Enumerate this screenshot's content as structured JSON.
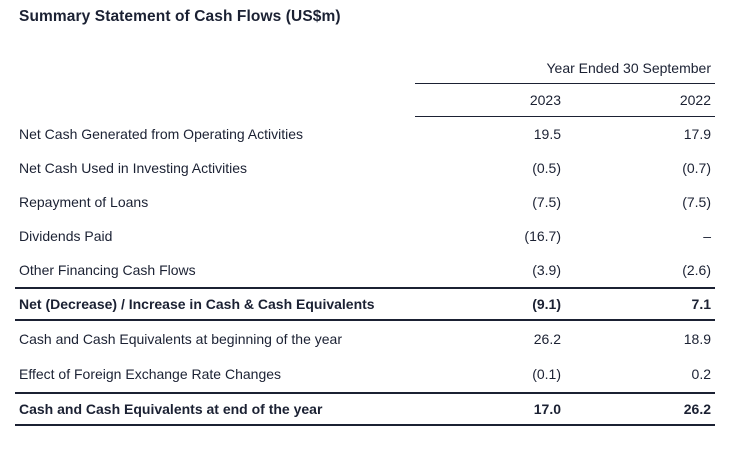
{
  "title": "Summary Statement of Cash Flows (US$m)",
  "colors": {
    "text": "#1b2133",
    "rule": "#1b2133",
    "background": "#ffffff"
  },
  "table": {
    "period_header": "Year Ended 30 September",
    "columns": [
      "2023",
      "2022"
    ],
    "rows": [
      {
        "label": "Net Cash Generated from Operating Activities",
        "y2023": "19.5",
        "y2022": "17.9"
      },
      {
        "label": "Net Cash Used in Investing Activities",
        "y2023": "(0.5)",
        "y2022": "(0.7)"
      },
      {
        "label": "Repayment of Loans",
        "y2023": "(7.5)",
        "y2022": "(7.5)"
      },
      {
        "label": "Dividends Paid",
        "y2023": "(16.7)",
        "y2022": "–"
      },
      {
        "label": "Other Financing Cash Flows",
        "y2023": "(3.9)",
        "y2022": "(2.6)"
      },
      {
        "label": "Net (Decrease) / Increase in Cash & Cash Equivalents",
        "y2023": "(9.1)",
        "y2022": "7.1",
        "emphasis": "bold-total"
      },
      {
        "label": "Cash and Cash Equivalents at beginning of the year",
        "y2023": "26.2",
        "y2022": "18.9"
      },
      {
        "label": "Effect of Foreign Exchange Rate Changes",
        "y2023": "(0.1)",
        "y2022": "0.2"
      },
      {
        "label": "Cash and Cash Equivalents at end of the year",
        "y2023": "17.0",
        "y2022": "26.2",
        "emphasis": "bold-total"
      }
    ]
  }
}
